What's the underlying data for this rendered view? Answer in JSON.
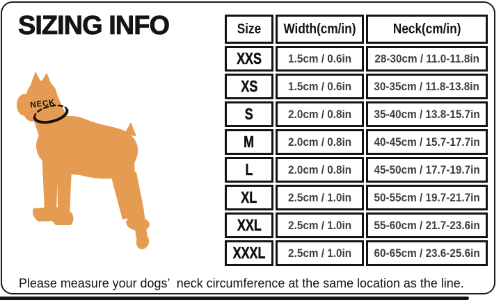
{
  "chart_data": {
    "type": "table",
    "title": "SIZING INFO",
    "columns": [
      "Size",
      "Width(cm/in)",
      "Neck(cm/in)"
    ],
    "rows": [
      {
        "size": "XXS",
        "width": "1.5cm / 0.6in",
        "neck": "28-30cm / 11.0-11.8in"
      },
      {
        "size": "XS",
        "width": "1.5cm / 0.6in",
        "neck": "30-35cm / 11.8-13.8in"
      },
      {
        "size": "S",
        "width": "2.0cm / 0.8in",
        "neck": "35-40cm / 13.8-15.7in"
      },
      {
        "size": "M",
        "width": "2.0cm / 0.8in",
        "neck": "40-45cm / 15.7-17.7in"
      },
      {
        "size": "L",
        "width": "2.0cm / 0.8in",
        "neck": "45-50cm / 17.7-19.7in"
      },
      {
        "size": "XL",
        "width": "2.5cm / 1.0in",
        "neck": "50-55cm / 19.7-21.7in"
      },
      {
        "size": "XXL",
        "width": "2.5cm / 1.0in",
        "neck": "55-60cm / 21.7-23.6in"
      },
      {
        "size": "XXXL",
        "width": "2.5cm / 1.0in",
        "neck": "60-65cm / 23.6-25.6in"
      }
    ],
    "layout": {
      "grid": "double-line black cell borders",
      "header_row": true
    }
  },
  "diagram": {
    "neck_label": "NECK"
  },
  "footer": {
    "note": "Please measure your dogs’  neck circumference at the same location as the line."
  },
  "colors": {
    "dog": "#E59B51",
    "line": "#141414",
    "border": "#1c1c1c",
    "value_text": "#3e3e3e"
  }
}
